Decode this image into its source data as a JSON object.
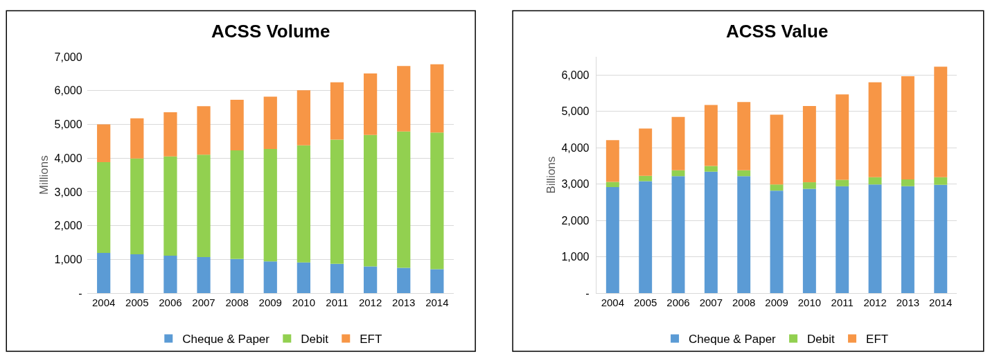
{
  "chart_data": [
    {
      "type": "bar",
      "stacked": true,
      "title": "ACSS Volume",
      "ylabel": "Millions",
      "categories": [
        "2004",
        "2005",
        "2006",
        "2007",
        "2008",
        "2009",
        "2010",
        "2011",
        "2012",
        "2013",
        "2014"
      ],
      "series": [
        {
          "name": "Cheque & Paper",
          "color": "#5b9bd5",
          "values": [
            1190,
            1150,
            1110,
            1070,
            1010,
            940,
            910,
            870,
            790,
            750,
            710
          ]
        },
        {
          "name": "Debit",
          "color": "#92d050",
          "values": [
            2690,
            2840,
            2940,
            3030,
            3220,
            3330,
            3470,
            3680,
            3900,
            4040,
            4050
          ]
        },
        {
          "name": "EFT",
          "color": "#f79646",
          "values": [
            1120,
            1190,
            1310,
            1440,
            1500,
            1550,
            1630,
            1700,
            1820,
            1940,
            2020
          ]
        }
      ],
      "ylim": [
        0,
        7000
      ],
      "yticks": [
        {
          "value": 0,
          "label": "-"
        },
        {
          "value": 1000,
          "label": "1,000"
        },
        {
          "value": 2000,
          "label": "2,000"
        },
        {
          "value": 3000,
          "label": "3,000"
        },
        {
          "value": 4000,
          "label": "4,000"
        },
        {
          "value": 5000,
          "label": "5,000"
        },
        {
          "value": 6000,
          "label": "6,000"
        },
        {
          "value": 7000,
          "label": "7,000"
        }
      ],
      "grid": "y",
      "legend": "bottom"
    },
    {
      "type": "bar",
      "stacked": true,
      "title": "ACSS Value",
      "ylabel": "Billions",
      "categories": [
        "2004",
        "2005",
        "2006",
        "2007",
        "2008",
        "2009",
        "2010",
        "2011",
        "2012",
        "2013",
        "2014"
      ],
      "series": [
        {
          "name": "Cheque & Paper",
          "color": "#5b9bd5",
          "values": [
            2920,
            3080,
            3220,
            3340,
            3220,
            2820,
            2870,
            2940,
            2990,
            2940,
            2980
          ]
        },
        {
          "name": "Debit",
          "color": "#92d050",
          "values": [
            140,
            150,
            160,
            160,
            160,
            170,
            180,
            180,
            200,
            190,
            210
          ]
        },
        {
          "name": "EFT",
          "color": "#f79646",
          "values": [
            1150,
            1300,
            1470,
            1680,
            1880,
            1920,
            2100,
            2350,
            2610,
            2840,
            3040
          ]
        }
      ],
      "ylim": [
        0,
        6500
      ],
      "yticks": [
        {
          "value": 0,
          "label": "-"
        },
        {
          "value": 1000,
          "label": "1,000"
        },
        {
          "value": 2000,
          "label": "2,000"
        },
        {
          "value": 3000,
          "label": "3,000"
        },
        {
          "value": 4000,
          "label": "4,000"
        },
        {
          "value": 5000,
          "label": "5,000"
        },
        {
          "value": 6000,
          "label": "6,000"
        }
      ],
      "grid": "y",
      "legend": "bottom"
    }
  ]
}
